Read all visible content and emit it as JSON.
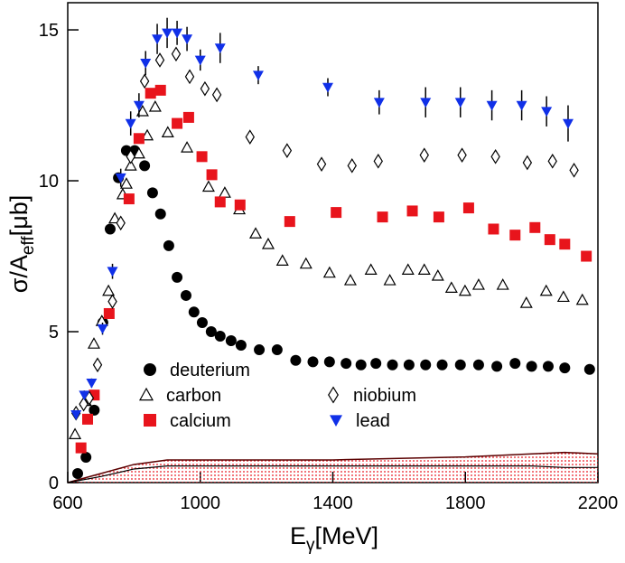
{
  "chart_data": {
    "type": "scatter",
    "xlabel": {
      "main": "E",
      "sub": "γ",
      "unit": "[MeV]"
    },
    "ylabel": {
      "main": "σ/A",
      "sub": "eff",
      "unit": "[μb]"
    },
    "xlim": [
      600,
      2200
    ],
    "xticks": [
      600,
      1000,
      1400,
      1800,
      2200
    ],
    "ylim": [
      0,
      15.9
    ],
    "yticks": [
      0,
      5,
      10,
      15
    ],
    "series": [
      {
        "name": "deuterium",
        "color": "#000000",
        "marker": "circle",
        "x": [
          630,
          655,
          680,
          706,
          728,
          753,
          777,
          802,
          832,
          856,
          880,
          905,
          930,
          957,
          981,
          1006,
          1033,
          1060,
          1093,
          1123,
          1178,
          1232,
          1288,
          1340,
          1390,
          1440,
          1485,
          1530,
          1580,
          1630,
          1680,
          1730,
          1785,
          1840,
          1895,
          1950,
          2000,
          2050,
          2100,
          2175
        ],
        "values": [
          0.3,
          0.84,
          2.4,
          5.3,
          8.4,
          10.1,
          11.0,
          11.0,
          10.5,
          9.6,
          8.9,
          7.85,
          6.8,
          6.2,
          5.65,
          5.3,
          5.0,
          4.85,
          4.7,
          4.55,
          4.4,
          4.4,
          4.05,
          4.0,
          4.0,
          3.95,
          3.9,
          3.95,
          3.9,
          3.9,
          3.9,
          3.9,
          3.9,
          3.9,
          3.85,
          3.95,
          3.85,
          3.85,
          3.8,
          3.75
        ]
      },
      {
        "name": "carbon",
        "color": "#000000",
        "marker": "triangle-open",
        "x": [
          622,
          654,
          679,
          703,
          723,
          742,
          766,
          777,
          790,
          815,
          826,
          840,
          864,
          902,
          960,
          1025,
          1074,
          1118,
          1167,
          1205,
          1248,
          1319,
          1390,
          1453,
          1515,
          1572,
          1627,
          1676,
          1717,
          1758,
          1799,
          1840,
          1913,
          1984,
          2044,
          2096,
          2153
        ],
        "values": [
          1.6,
          2.7,
          4.6,
          5.35,
          6.35,
          8.75,
          9.55,
          9.9,
          10.5,
          10.9,
          12.3,
          11.5,
          12.45,
          11.6,
          11.1,
          9.8,
          9.6,
          9.05,
          8.25,
          7.9,
          7.35,
          7.25,
          6.95,
          6.7,
          7.05,
          6.7,
          7.05,
          7.05,
          6.85,
          6.45,
          6.35,
          6.55,
          6.55,
          5.95,
          6.35,
          6.15,
          6.05
        ]
      },
      {
        "name": "calcium",
        "color": "#e8141c",
        "marker": "square",
        "x": [
          640,
          660,
          680,
          725,
          785,
          815,
          850,
          880,
          930,
          965,
          1005,
          1035,
          1060,
          1120,
          1270,
          1410,
          1550,
          1640,
          1720,
          1810,
          1885,
          1950,
          2010,
          2055,
          2100,
          2165
        ],
        "values": [
          1.15,
          2.1,
          2.9,
          5.6,
          9.4,
          11.4,
          12.9,
          13.0,
          11.9,
          12.1,
          10.8,
          10.2,
          9.3,
          9.2,
          8.65,
          8.95,
          8.8,
          9.0,
          8.8,
          9.1,
          8.4,
          8.2,
          8.45,
          8.05,
          7.9,
          7.5
        ]
      },
      {
        "name": "niobium",
        "color": "#000000",
        "marker": "diamond-open",
        "x": [
          625,
          648,
          665,
          690,
          735,
          760,
          790,
          832,
          878,
          927,
          968,
          1014,
          1050,
          1150,
          1262,
          1366,
          1458,
          1537,
          1676,
          1790,
          1891,
          1987,
          2063,
          2128
        ],
        "values": [
          2.3,
          2.6,
          2.8,
          3.9,
          6.0,
          8.6,
          10.8,
          13.3,
          14.0,
          14.2,
          13.45,
          13.05,
          12.85,
          11.45,
          11.0,
          10.55,
          10.5,
          10.65,
          10.85,
          10.85,
          10.8,
          10.6,
          10.65,
          10.35
        ]
      },
      {
        "name": "lead",
        "color": "#1030e8",
        "marker": "triangle-down",
        "x": [
          625,
          650,
          672,
          705,
          735,
          760,
          790,
          815,
          835,
          870,
          900,
          930,
          960,
          1000,
          1060,
          1175,
          1385,
          1540,
          1680,
          1785,
          1880,
          1970,
          2045,
          2110
        ],
        "values": [
          2.25,
          2.9,
          3.3,
          5.1,
          7.0,
          10.1,
          11.9,
          12.5,
          13.9,
          14.7,
          14.9,
          14.9,
          14.7,
          14.0,
          14.4,
          13.5,
          13.1,
          12.6,
          12.6,
          12.6,
          12.5,
          12.5,
          12.3,
          11.9
        ],
        "errors": [
          0.1,
          0.15,
          0.15,
          0.2,
          0.25,
          0.3,
          0.4,
          0.4,
          0.4,
          0.5,
          0.5,
          0.4,
          0.4,
          0.35,
          0.5,
          0.3,
          0.3,
          0.4,
          0.5,
          0.5,
          0.5,
          0.5,
          0.5,
          0.6
        ]
      }
    ],
    "band": {
      "color": "#e8141c",
      "x": [
        600,
        700,
        800,
        900,
        1000,
        1200,
        1400,
        1600,
        1800,
        2000,
        2100,
        2200
      ],
      "upper": [
        0,
        0.3,
        0.6,
        0.75,
        0.75,
        0.75,
        0.75,
        0.8,
        0.85,
        0.95,
        1.0,
        0.95
      ],
      "lower": [
        0,
        0.2,
        0.45,
        0.55,
        0.55,
        0.55,
        0.55,
        0.55,
        0.55,
        0.55,
        0.5,
        0.5
      ]
    }
  }
}
